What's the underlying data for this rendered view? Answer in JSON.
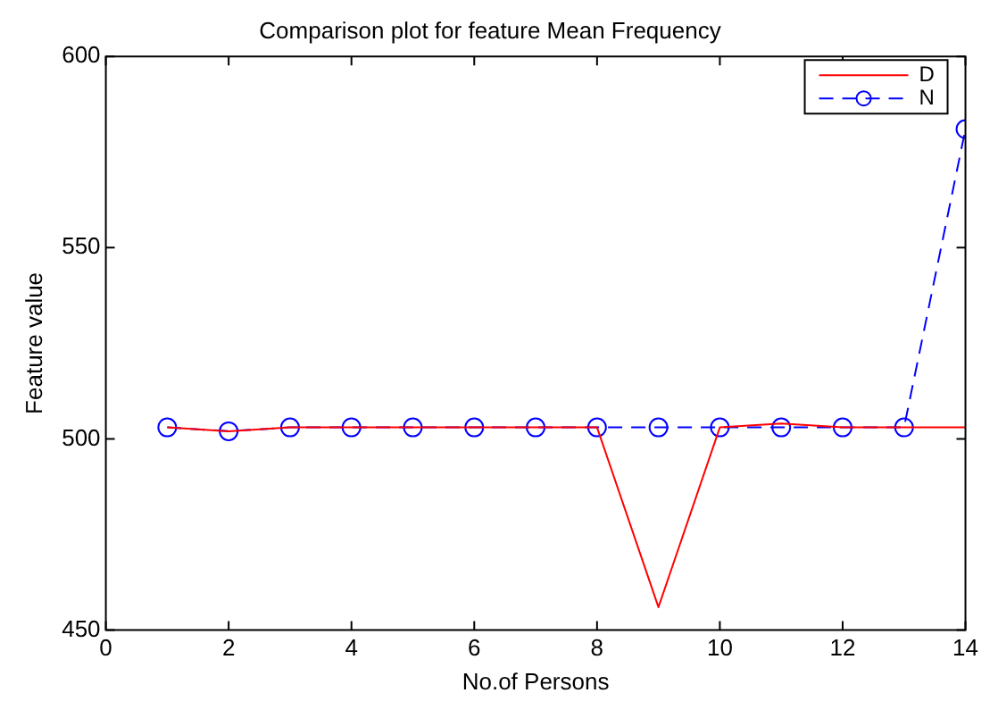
{
  "chart_data": {
    "type": "line",
    "title": "Comparison plot for feature Mean Frequency",
    "xlabel": "No.of Persons",
    "ylabel": "Feature value",
    "x": [
      1,
      2,
      3,
      4,
      5,
      6,
      7,
      8,
      9,
      10,
      11,
      12,
      13,
      14
    ],
    "series": [
      {
        "name": "D",
        "color": "#ff0000",
        "marker": "none",
        "line_style": "solid",
        "values": [
          503,
          502,
          503,
          503,
          503,
          503,
          503,
          503,
          456,
          503,
          504,
          503,
          503,
          503
        ]
      },
      {
        "name": "N",
        "color": "#0000ff",
        "marker": "circle",
        "line_style": "dashed",
        "values": [
          503,
          502,
          503,
          503,
          503,
          503,
          503,
          503,
          503,
          503,
          503,
          503,
          503,
          581
        ]
      }
    ],
    "xlim": [
      0,
      14
    ],
    "xticks": [
      0,
      2,
      4,
      6,
      8,
      10,
      12,
      14
    ],
    "ylim": [
      450,
      600
    ],
    "yticks": [
      450,
      500,
      550,
      600
    ],
    "grid": false,
    "legend": "top right"
  }
}
